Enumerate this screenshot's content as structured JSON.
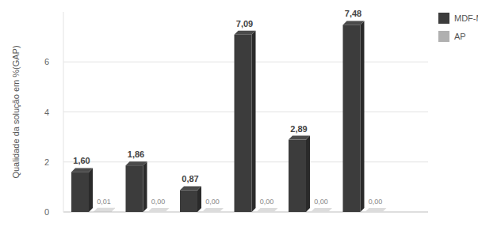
{
  "chart_data": {
    "type": "bar",
    "y_label": "Qualidade da solução em %(GAP)",
    "categories": [
      null,
      null,
      null,
      null,
      null,
      null
    ],
    "series": [
      {
        "name": "MDF-MST",
        "color": "#3c3c3c",
        "values": [
          1.6,
          1.86,
          0.87,
          7.09,
          2.89,
          7.48
        ],
        "value_labels": [
          "1,60",
          "1,86",
          "0,87",
          "7,09",
          "2,89",
          "7,48"
        ]
      },
      {
        "name": "AP",
        "color": "#b0b0b0",
        "values": [
          0.01,
          0,
          0,
          0,
          0,
          0
        ],
        "value_labels": [
          "0,01",
          "0,00",
          "0,00",
          "0,00",
          "0,00",
          "0,00"
        ]
      }
    ],
    "ylim": [
      0,
      8
    ],
    "yticks": [
      0,
      2,
      4,
      6
    ],
    "grid": true,
    "legend": "right",
    "data_labels": true
  }
}
